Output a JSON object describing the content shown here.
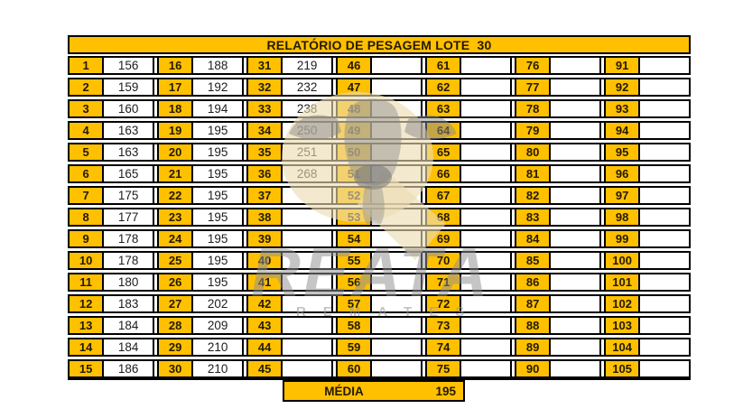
{
  "header": {
    "title": "RELATÓRIO DE PESAGEM LOTE  30"
  },
  "table": {
    "groups": [
      {
        "numbers": [
          "1",
          "2",
          "3",
          "4",
          "5",
          "6",
          "7",
          "8",
          "9",
          "10",
          "11",
          "12",
          "13",
          "14",
          "15"
        ],
        "weights": [
          "156",
          "159",
          "160",
          "163",
          "163",
          "165",
          "175",
          "177",
          "178",
          "178",
          "180",
          "183",
          "184",
          "184",
          "186"
        ]
      },
      {
        "numbers": [
          "16",
          "17",
          "18",
          "19",
          "20",
          "21",
          "22",
          "23",
          "24",
          "25",
          "26",
          "27",
          "28",
          "29",
          "30"
        ],
        "weights": [
          "188",
          "192",
          "194",
          "195",
          "195",
          "195",
          "195",
          "195",
          "195",
          "195",
          "195",
          "202",
          "209",
          "210",
          "210"
        ]
      },
      {
        "numbers": [
          "31",
          "32",
          "33",
          "34",
          "35",
          "36",
          "37",
          "38",
          "39",
          "40",
          "41",
          "42",
          "43",
          "44",
          "45"
        ],
        "weights": [
          "219",
          "232",
          "238",
          "250",
          "251",
          "268",
          "",
          "",
          "",
          "",
          "",
          "",
          "",
          "",
          ""
        ]
      },
      {
        "numbers": [
          "46",
          "47",
          "48",
          "49",
          "50",
          "51",
          "52",
          "53",
          "54",
          "55",
          "56",
          "57",
          "58",
          "59",
          "60"
        ],
        "weights": [
          "",
          "",
          "",
          "",
          "",
          "",
          "",
          "",
          "",
          "",
          "",
          "",
          "",
          "",
          ""
        ]
      },
      {
        "numbers": [
          "61",
          "62",
          "63",
          "64",
          "65",
          "66",
          "67",
          "68",
          "69",
          "70",
          "71",
          "72",
          "73",
          "74",
          "75"
        ],
        "weights": [
          "",
          "",
          "",
          "",
          "",
          "",
          "",
          "",
          "",
          "",
          "",
          "",
          "",
          "",
          ""
        ]
      },
      {
        "numbers": [
          "76",
          "77",
          "78",
          "79",
          "80",
          "81",
          "82",
          "83",
          "84",
          "85",
          "86",
          "87",
          "88",
          "89",
          "90"
        ],
        "weights": [
          "",
          "",
          "",
          "",
          "",
          "",
          "",
          "",
          "",
          "",
          "",
          "",
          "",
          "",
          ""
        ]
      },
      {
        "numbers": [
          "91",
          "92",
          "93",
          "94",
          "95",
          "96",
          "97",
          "98",
          "99",
          "100",
          "101",
          "102",
          "103",
          "104",
          "105"
        ],
        "weights": [
          "",
          "",
          "",
          "",
          "",
          "",
          "",
          "",
          "",
          "",
          "",
          "",
          "",
          "",
          ""
        ]
      }
    ]
  },
  "footer": {
    "media_label": "MÉDIA",
    "media_value": "195"
  },
  "watermark": {
    "brand": "REATA",
    "sub": "REMATES"
  },
  "colors": {
    "accent": "#FFC000",
    "cell_background": "#FFFFFF",
    "border": "#000000",
    "watermark_tan": "#ECDCB2",
    "watermark_gray": "#8F8F8F"
  }
}
